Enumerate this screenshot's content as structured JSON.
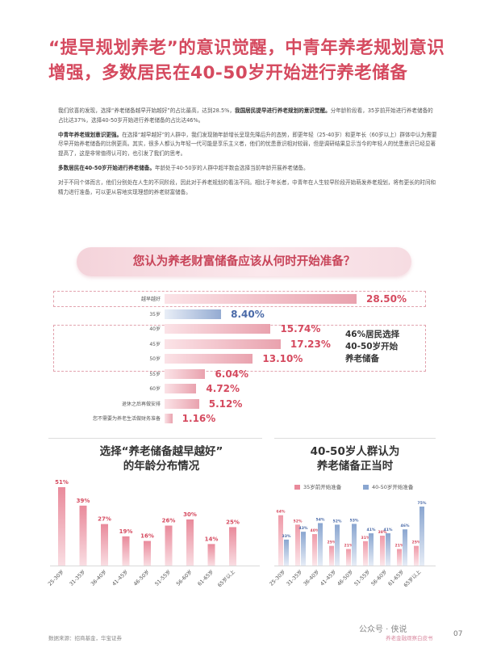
{
  "title": "“提早规划养老”的意识觉醒，中青年养老规划意识增强，多数居民在40-50岁开始进行养老储备",
  "paragraphs": {
    "p1_a": "我们欣喜的发现，选择“养老储备越早开始越好”的占比最高，达到28.5%，",
    "p1_b": "我国居民提早进行养老规划的意识觉醒。",
    "p1_c": "分年龄阶段看，35岁前开始进行养老储备的占比达37%，选择40-50岁开始进行养老储备的占比达46%。",
    "p2_a": "中青年养老规划意识更强。",
    "p2_b": "在选择“越早越好”的人群中，我们发现随年龄增长呈现先降后升的态势，即更年轻（25-40岁）和更年长（60岁以上）群体中认为需要尽早开始养老储备的比例更高。其实，很多人都认为年轻一代可能是享乐主义者，他们的忧患意识相对较弱，但是调研结果显示当今的年轻人的忧患意识已经显著提高了，这是非常值得认可的，也引发了我们的思考。",
    "p3_a": "多数居民在40-50岁开始进行养老储备。",
    "p3_b": "年龄处于40-50岁的人群中超半数会选择当前年龄开展养老储备。",
    "p4": "对于不同个体而言，他们分别处在人生的不同阶段，因此对于养老规划的看法不同。相比于年长者，中青年在人生较早阶段开始萌发养老规划，将有更长的时间和精力进行准备，可以更从容地实现理想的养老财富储备。"
  },
  "question_banner": "您认为养老财富储备应该从何时开始准备？",
  "callout": [
    "46%居民选择",
    "40-50岁开始",
    "养老储备"
  ],
  "left_chart_title": [
    "选择“养老储备越早越好”",
    "的年龄分布情况"
  ],
  "right_chart_title": [
    "40-50岁人群认为",
    "养老储备正当时"
  ],
  "footer": {
    "source": "数据来源：招商基金，华宝证券",
    "right_text": "养老金融观察白皮书",
    "watermark": "公众号 · 侠说",
    "page": "07"
  },
  "colors": {
    "pink": "#d54a5f",
    "blue": "#4a6aa8",
    "pink_bar": "#e9a2ae",
    "blue_bar": "#94abd2"
  },
  "chart_data": [
    {
      "type": "bar",
      "orientation": "horizontal",
      "title": "您认为养老财富储备应该从何时开始准备？",
      "categories": [
        "越早越好",
        "35岁",
        "40岁",
        "45岁",
        "50岁",
        "55岁",
        "60岁",
        "退休之后再做安排",
        "您不需要为养老生活做财务准备"
      ],
      "values": [
        28.5,
        8.4,
        15.74,
        17.23,
        13.1,
        6.04,
        4.72,
        5.12,
        1.16
      ],
      "value_labels": [
        "28.50%",
        "8.40%",
        "15.74%",
        "17.23%",
        "13.10%",
        "6.04%",
        "4.72%",
        "5.12%",
        "1.16%"
      ],
      "colors": [
        "pink",
        "blue",
        "pink",
        "pink",
        "pink",
        "pink",
        "pink",
        "pink",
        "pink"
      ]
    },
    {
      "type": "bar",
      "title": "选择“养老储备越早越好”的年龄分布情况",
      "categories": [
        "25-30岁",
        "31-35岁",
        "36-40岁",
        "41-45岁",
        "46-50岁",
        "51-55岁",
        "56-60岁",
        "61-65岁",
        "65岁以上"
      ],
      "values": [
        51,
        39,
        27,
        19,
        16,
        26,
        30,
        14,
        25
      ],
      "value_labels": [
        "51%",
        "39%",
        "27%",
        "19%",
        "16%",
        "26%",
        "30%",
        "14%",
        "25%"
      ]
    },
    {
      "type": "bar",
      "title": "40-50岁人群认为养老储备正当时",
      "categories": [
        "25-30岁",
        "31-35岁",
        "36-40岁",
        "41-45岁",
        "46-50岁",
        "51-55岁",
        "56-60岁",
        "61-65岁",
        "65岁以上"
      ],
      "series": [
        {
          "name": "35岁前开始准备",
          "values": [
            64,
            52,
            40,
            25,
            21,
            31,
            38,
            21,
            25
          ],
          "labels": [
            "64%",
            "52%",
            "40%",
            "25%",
            "21%",
            "31%",
            "38%",
            "21%",
            "25%"
          ]
        },
        {
          "name": "40-50岁开始准备",
          "values": [
            33,
            43,
            54,
            52,
            53,
            41,
            41,
            46,
            75
          ],
          "labels": [
            "33%",
            "43%",
            "54%",
            "52%",
            "53%",
            "41%",
            "41%",
            "46%",
            "75%"
          ]
        }
      ],
      "legend": "top"
    }
  ]
}
